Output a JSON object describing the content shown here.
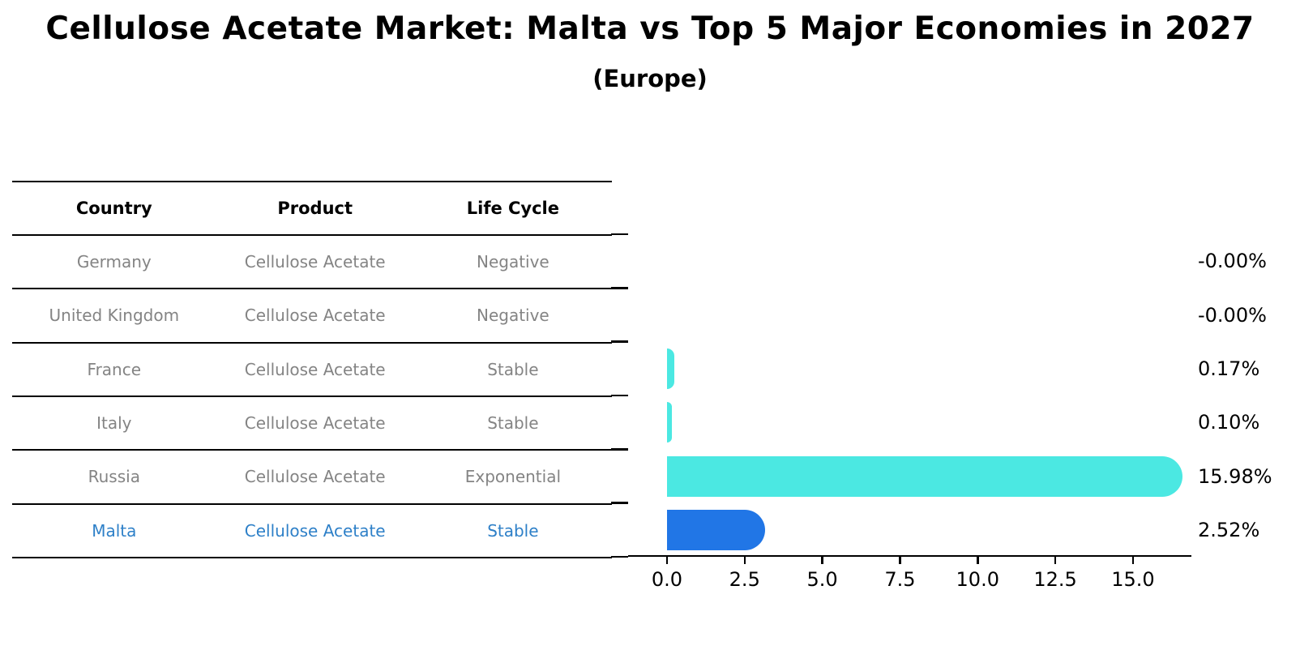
{
  "page": {
    "title": "Cellulose Acetate Market: Malta vs Top 5 Major Economies in 2027",
    "subtitle": "(Europe)"
  },
  "table": {
    "headers": [
      "Country",
      "Product",
      "Life Cycle"
    ],
    "rows": [
      {
        "country": "Germany",
        "product": "Cellulose Acetate",
        "life_cycle": "Negative",
        "highlighted": false
      },
      {
        "country": "United Kingdom",
        "product": "Cellulose Acetate",
        "life_cycle": "Negative",
        "highlighted": false
      },
      {
        "country": "France",
        "product": "Cellulose Acetate",
        "life_cycle": "Stable",
        "highlighted": false
      },
      {
        "country": "Italy",
        "product": "Cellulose Acetate",
        "life_cycle": "Stable",
        "highlighted": false
      },
      {
        "country": "Russia",
        "product": "Cellulose Acetate",
        "life_cycle": "Exponential",
        "highlighted": false
      },
      {
        "country": "Malta",
        "product": "Cellulose Acetate",
        "life_cycle": "Stable",
        "highlighted": true
      }
    ]
  },
  "chart_data": {
    "type": "bar",
    "orientation": "horizontal",
    "title": "Cellulose Acetate Market: Malta vs Top 5 Major Economies in 2027",
    "subtitle": "(Europe)",
    "categories": [
      "Germany",
      "United Kingdom",
      "France",
      "Italy",
      "Russia",
      "Malta"
    ],
    "values": [
      -0.0,
      -0.0,
      0.17,
      0.1,
      15.98,
      2.52
    ],
    "value_labels": [
      "-0.00%",
      "-0.00%",
      "0.17%",
      "0.10%",
      "15.98%",
      "2.52%"
    ],
    "unit": "percent",
    "xlim": [
      -1.25,
      16.88
    ],
    "x_ticks": [
      0,
      2.5,
      5,
      7.5,
      10,
      12.5,
      15
    ],
    "x_tick_labels": [
      "0.0",
      "2.5",
      "5.0",
      "7.5",
      "10.0",
      "12.5",
      "15.0"
    ],
    "grid": false,
    "legend": null,
    "highlight_index": 5,
    "colors": {
      "bar": "#4BE8E2",
      "highlight_bar": "#2176E6",
      "highlight_text": "#2E80C8",
      "table_text": "#848484",
      "header_text": "#000000",
      "value_text": "#000000",
      "axis": "#000000"
    }
  }
}
